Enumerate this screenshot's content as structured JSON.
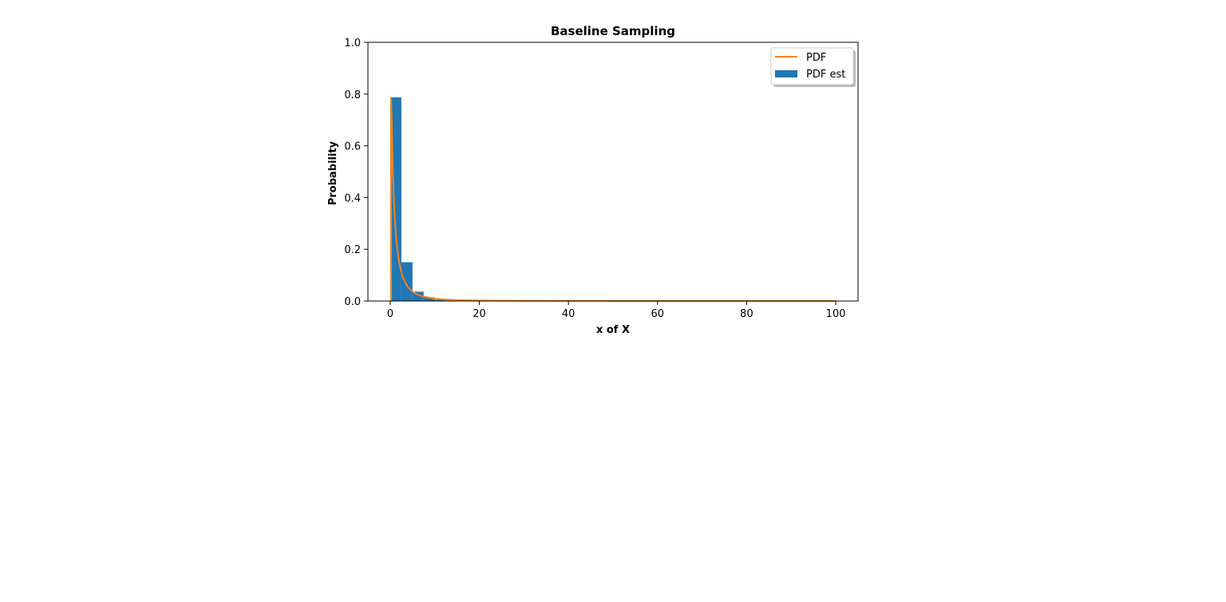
{
  "chart_data": {
    "type": "bar",
    "title": "Baseline Sampling",
    "xlabel": "x of X",
    "ylabel": "Probability",
    "xlim": [
      -5,
      105
    ],
    "ylim": [
      0,
      1.0
    ],
    "x_ticks": [
      0,
      20,
      40,
      60,
      80,
      100
    ],
    "y_ticks": [
      0.0,
      0.2,
      0.4,
      0.6,
      0.8,
      1.0
    ],
    "grid": false,
    "legend_position": "top-right",
    "colors": {
      "hist": "#1f77b4",
      "pdf": "#ff7f0e"
    },
    "series": [
      {
        "name": "PDF est",
        "type": "histogram",
        "bin_edges": [
          0.0,
          2.5,
          5.0,
          7.5,
          10.0,
          12.5,
          15.0,
          17.5,
          20.0
        ],
        "values": [
          0.787,
          0.15,
          0.036,
          0.014,
          0.005,
          0.002,
          0.001,
          0.0005
        ]
      },
      {
        "name": "PDF",
        "type": "line",
        "x": [
          0.2,
          0.3,
          0.4,
          0.6,
          0.8,
          1.0,
          1.3,
          1.6,
          2.0,
          2.5,
          3.0,
          3.5,
          4.0,
          5.0,
          6.0,
          7.0,
          8.0,
          10.0,
          12.0,
          15.0,
          20.0,
          30.0,
          50.0,
          100.0
        ],
        "y": [
          0.785,
          0.72,
          0.64,
          0.5,
          0.4,
          0.33,
          0.25,
          0.2,
          0.15,
          0.11,
          0.085,
          0.067,
          0.053,
          0.036,
          0.026,
          0.019,
          0.015,
          0.009,
          0.006,
          0.0035,
          0.0018,
          0.0007,
          0.0002,
          0.0
        ]
      }
    ]
  }
}
